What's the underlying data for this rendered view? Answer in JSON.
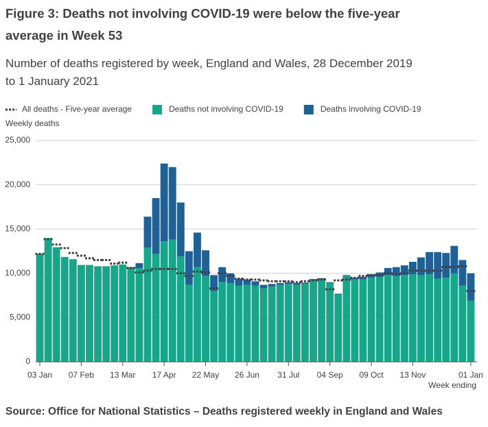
{
  "chart_data": {
    "type": "bar",
    "stacked": true,
    "title": "Figure 3: Deaths not involving COVID-19 were below the five-year average in Week 53",
    "subtitle": "Number of deaths registered by week, England and Wales, 28 December 2019 to 1 January 2021",
    "y_label": "Weekly deaths",
    "x_label": "Week ending",
    "source": "Source: Office for National Statistics – Deaths registered weekly in England and Wales",
    "categories": [
      "03 Jan",
      null,
      null,
      null,
      null,
      "07 Feb",
      null,
      null,
      null,
      null,
      "13 Mar",
      null,
      null,
      null,
      null,
      "17 Apr",
      null,
      null,
      null,
      null,
      "22 May",
      null,
      null,
      null,
      null,
      "26 Jun",
      null,
      null,
      null,
      null,
      "31 Jul",
      null,
      null,
      null,
      null,
      "04 Sep",
      null,
      null,
      null,
      null,
      "09 Oct",
      null,
      null,
      null,
      null,
      "13 Nov",
      null,
      null,
      null,
      null,
      null,
      null,
      "01 Jan"
    ],
    "series": [
      {
        "name": "All deaths - Five-year average",
        "type": "line",
        "dashed": true,
        "color": "#414042",
        "values": [
          12200,
          13850,
          13250,
          12850,
          12300,
          12000,
          11700,
          11500,
          11500,
          11100,
          11200,
          10600,
          10100,
          10300,
          10500,
          10500,
          10500,
          10000,
          9700,
          10200,
          10100,
          8300,
          10000,
          9700,
          9400,
          9300,
          9300,
          9200,
          9100,
          9100,
          9100,
          9000,
          9100,
          9200,
          9300,
          8200,
          9200,
          9300,
          9500,
          9700,
          9800,
          9800,
          10000,
          9900,
          10000,
          10300,
          10300,
          10300,
          10300,
          10700,
          10700,
          10800,
          8000
        ]
      },
      {
        "name": "Deaths not involving COVID-19",
        "type": "bar",
        "color": "#17a68a",
        "values": [
          12200,
          14000,
          12950,
          11850,
          11600,
          10950,
          10950,
          10800,
          10800,
          10900,
          11000,
          10600,
          10600,
          12900,
          12200,
          13600,
          13800,
          11900,
          8700,
          10700,
          9700,
          8000,
          9000,
          8900,
          8600,
          8700,
          8600,
          8300,
          8500,
          8700,
          8800,
          8700,
          8800,
          9200,
          9300,
          8900,
          7600,
          9700,
          9300,
          9300,
          9500,
          9600,
          9800,
          9700,
          9800,
          9900,
          9800,
          9900,
          9400,
          9500,
          10000,
          8600,
          6900
        ]
      },
      {
        "name": "Deaths involving COVID-19",
        "type": "bar",
        "color": "#206095",
        "values": [
          0,
          0,
          0,
          0,
          0,
          0,
          0,
          0,
          0,
          0,
          0,
          100,
          550,
          3500,
          6300,
          8800,
          8200,
          6100,
          3800,
          3900,
          2900,
          1800,
          1700,
          1100,
          800,
          600,
          500,
          400,
          300,
          200,
          200,
          200,
          150,
          150,
          150,
          100,
          100,
          100,
          200,
          300,
          400,
          500,
          800,
          1000,
          1100,
          1400,
          2000,
          2500,
          3000,
          2800,
          3100,
          2900,
          3100
        ]
      }
    ],
    "ylim": [
      0,
      25000
    ],
    "yticks": [
      0,
      {
        "value": 5000,
        "label": "5,000"
      },
      {
        "value": 10000,
        "label": "10,000"
      },
      {
        "value": 15000,
        "label": "15,000"
      },
      {
        "value": 20000,
        "label": "20,000"
      },
      {
        "value": 25000,
        "label": "25,000"
      }
    ],
    "grid": true
  }
}
